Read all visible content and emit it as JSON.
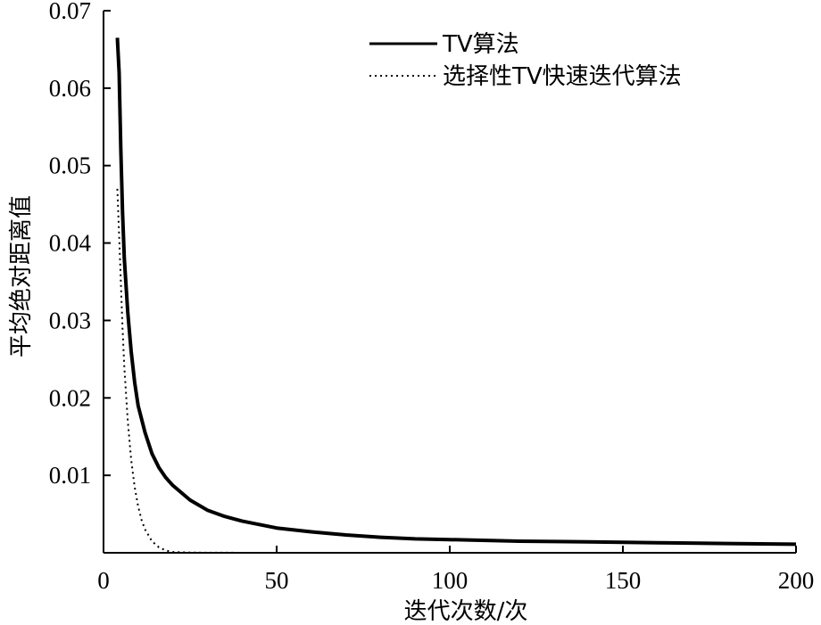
{
  "chart_data": {
    "type": "line",
    "xlabel": "迭代次数/次",
    "ylabel": "平均绝对距离值",
    "xlim": [
      0,
      200
    ],
    "ylim": [
      0,
      0.07
    ],
    "xticks": [
      0,
      50,
      100,
      150,
      200
    ],
    "yticks": [
      0.01,
      0.02,
      0.03,
      0.04,
      0.05,
      0.06,
      0.07
    ],
    "xtick_labels": [
      "0",
      "50",
      "100",
      "150",
      "200"
    ],
    "ytick_labels": [
      "0.01",
      "0.02",
      "0.03",
      "0.04",
      "0.05",
      "0.06",
      "0.07"
    ],
    "grid": false,
    "legend_position": "top-right",
    "series": [
      {
        "name": "TV算法",
        "style": "solid",
        "color": "#000000",
        "x": [
          4,
          4.5,
          5,
          5.5,
          6,
          7,
          8,
          9,
          10,
          12,
          14,
          16,
          18,
          20,
          25,
          30,
          35,
          40,
          50,
          60,
          70,
          80,
          90,
          100,
          120,
          140,
          160,
          180,
          200
        ],
        "y": [
          0.0665,
          0.062,
          0.052,
          0.044,
          0.038,
          0.031,
          0.026,
          0.022,
          0.019,
          0.0155,
          0.0128,
          0.011,
          0.0097,
          0.0087,
          0.0068,
          0.0055,
          0.0047,
          0.0041,
          0.0032,
          0.0027,
          0.0023,
          0.002,
          0.0018,
          0.0017,
          0.0015,
          0.0014,
          0.0013,
          0.0012,
          0.0011
        ]
      },
      {
        "name": "选择性TV快速迭代算法",
        "style": "dotted",
        "color": "#000000",
        "x": [
          4,
          4.5,
          5,
          5.5,
          6,
          7,
          8,
          9,
          10,
          11,
          12,
          14,
          16,
          18,
          20,
          25,
          30,
          50,
          100,
          150,
          200
        ],
        "y": [
          0.047,
          0.041,
          0.035,
          0.029,
          0.024,
          0.017,
          0.012,
          0.0085,
          0.006,
          0.0042,
          0.003,
          0.0015,
          0.0007,
          0.0003,
          0.0001,
          3e-05,
          1e-05,
          0,
          0,
          0,
          0
        ]
      }
    ]
  }
}
